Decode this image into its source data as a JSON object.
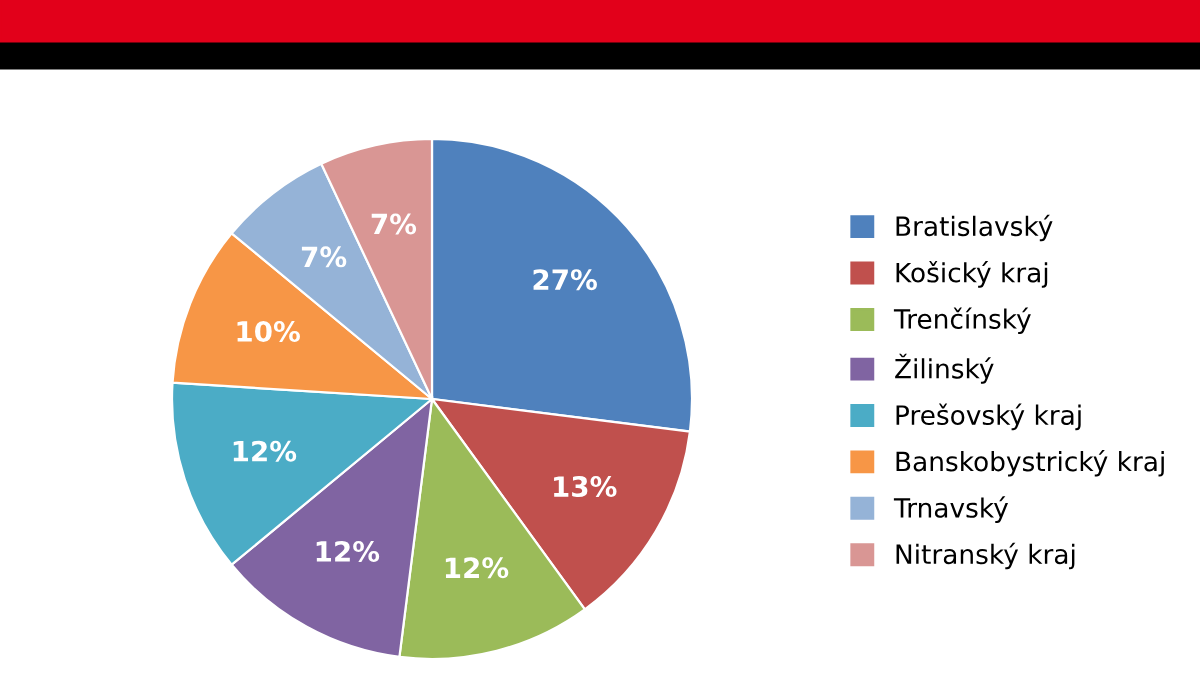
{
  "chart_data": {
    "type": "pie",
    "categories": [
      "Bratislavský",
      "Košický kraj",
      "Trenčínský",
      "Žilinský",
      "Prešovský kraj",
      "Banskobystrický kraj",
      "Trnavský",
      "Nitranský kraj"
    ],
    "values": [
      27,
      13,
      12,
      12,
      12,
      10,
      7,
      7
    ],
    "colors": [
      "#4f81bd",
      "#c0504d",
      "#9bbb59",
      "#8064a2",
      "#4bacc6",
      "#f79646",
      "#95b3d7",
      "#d99694"
    ],
    "value_labels": [
      "27%",
      "13%",
      "12%",
      "12%",
      "12%",
      "10%",
      "7%",
      "7%"
    ],
    "legend": "right"
  }
}
